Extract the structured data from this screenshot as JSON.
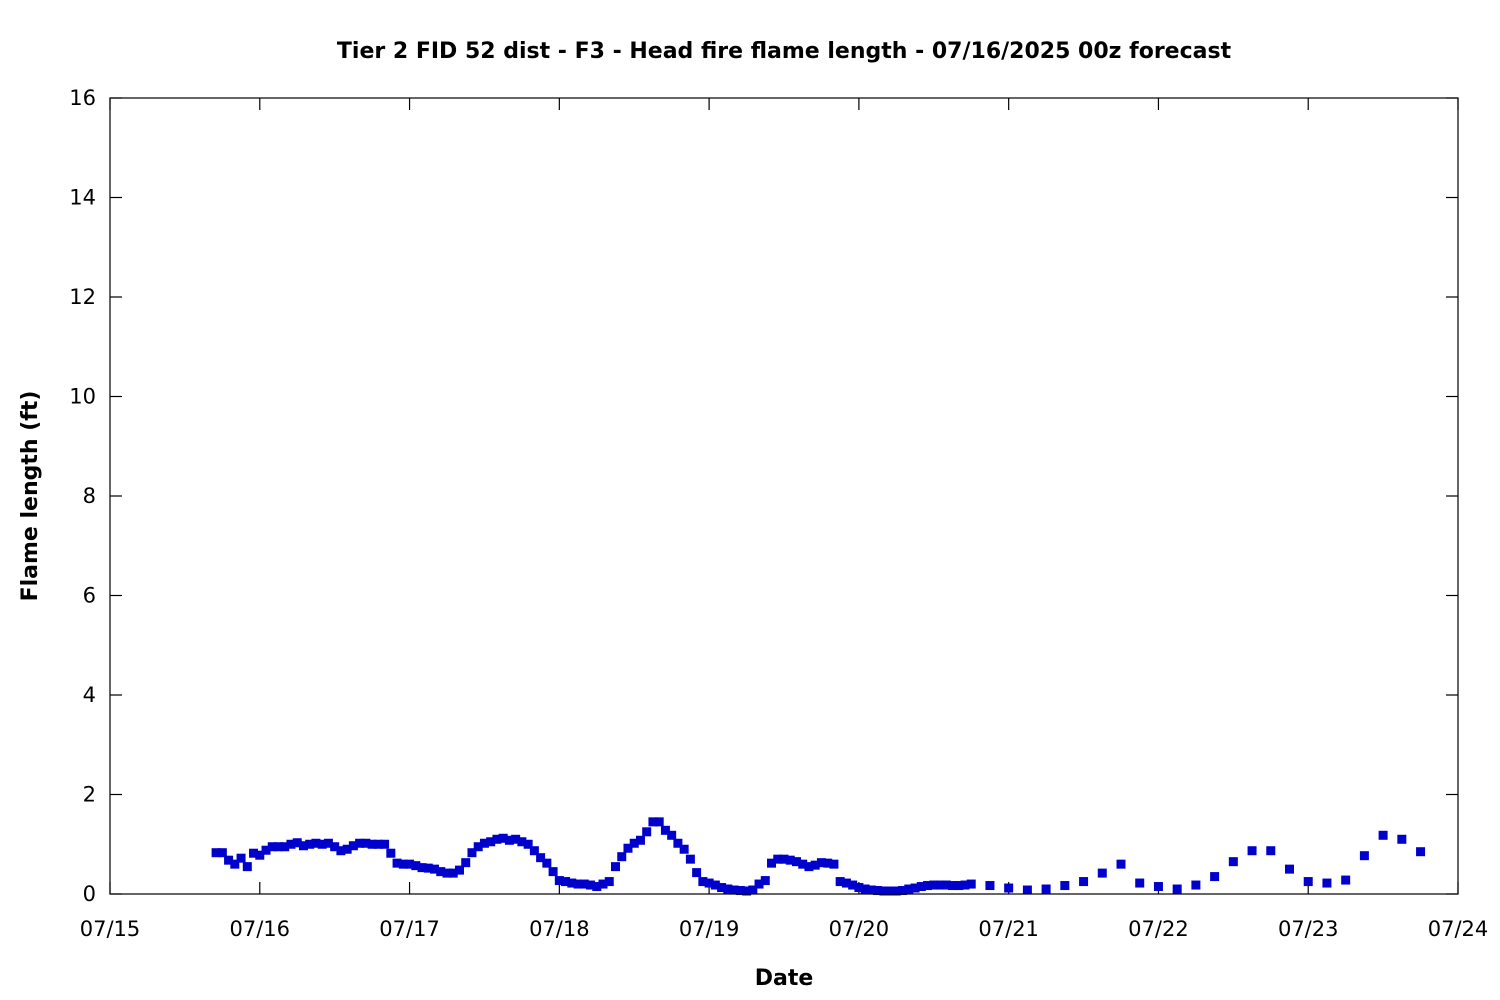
{
  "chart_data": {
    "type": "scatter",
    "title": "Tier 2 FID 52 dist - F3 - Head fire flame length - 07/16/2025 00z forecast",
    "xlabel": "Date",
    "ylabel": "Flame length (ft)",
    "x_axis": {
      "type": "date",
      "start": "2025-07-15",
      "end": "2025-07-24",
      "tick_labels": [
        "07/15",
        "07/16",
        "07/17",
        "07/18",
        "07/19",
        "07/20",
        "07/21",
        "07/22",
        "07/23",
        "07/24"
      ]
    },
    "ylim": [
      0,
      16
    ],
    "y_ticks": [
      0,
      2,
      4,
      6,
      8,
      10,
      12,
      14,
      16
    ],
    "grid": false,
    "marker": "square",
    "series": [
      {
        "color": "#0000cc",
        "points": [
          [
            "2025-07-15T17:00",
            0.83
          ],
          [
            "2025-07-15T18:00",
            0.83
          ],
          [
            "2025-07-15T19:00",
            0.68
          ],
          [
            "2025-07-15T20:00",
            0.6
          ],
          [
            "2025-07-15T21:00",
            0.72
          ],
          [
            "2025-07-15T22:00",
            0.55
          ],
          [
            "2025-07-15T23:00",
            0.82
          ],
          [
            "2025-07-16T00:00",
            0.78
          ],
          [
            "2025-07-16T01:00",
            0.88
          ],
          [
            "2025-07-16T02:00",
            0.95
          ],
          [
            "2025-07-16T03:00",
            0.95
          ],
          [
            "2025-07-16T04:00",
            0.95
          ],
          [
            "2025-07-16T05:00",
            1.0
          ],
          [
            "2025-07-16T06:00",
            1.03
          ],
          [
            "2025-07-16T07:00",
            0.97
          ],
          [
            "2025-07-16T08:00",
            1.0
          ],
          [
            "2025-07-16T09:00",
            1.02
          ],
          [
            "2025-07-16T10:00",
            1.0
          ],
          [
            "2025-07-16T11:00",
            1.02
          ],
          [
            "2025-07-16T12:00",
            0.95
          ],
          [
            "2025-07-16T13:00",
            0.87
          ],
          [
            "2025-07-16T14:00",
            0.9
          ],
          [
            "2025-07-16T15:00",
            0.97
          ],
          [
            "2025-07-16T16:00",
            1.02
          ],
          [
            "2025-07-16T17:00",
            1.02
          ],
          [
            "2025-07-16T18:00",
            1.0
          ],
          [
            "2025-07-16T19:00",
            1.0
          ],
          [
            "2025-07-16T20:00",
            1.0
          ],
          [
            "2025-07-16T21:00",
            0.82
          ],
          [
            "2025-07-16T22:00",
            0.62
          ],
          [
            "2025-07-16T23:00",
            0.6
          ],
          [
            "2025-07-17T00:00",
            0.6
          ],
          [
            "2025-07-17T01:00",
            0.57
          ],
          [
            "2025-07-17T02:00",
            0.53
          ],
          [
            "2025-07-17T03:00",
            0.52
          ],
          [
            "2025-07-17T04:00",
            0.5
          ],
          [
            "2025-07-17T05:00",
            0.45
          ],
          [
            "2025-07-17T06:00",
            0.42
          ],
          [
            "2025-07-17T07:00",
            0.42
          ],
          [
            "2025-07-17T08:00",
            0.48
          ],
          [
            "2025-07-17T09:00",
            0.63
          ],
          [
            "2025-07-17T10:00",
            0.83
          ],
          [
            "2025-07-17T11:00",
            0.95
          ],
          [
            "2025-07-17T12:00",
            1.02
          ],
          [
            "2025-07-17T13:00",
            1.05
          ],
          [
            "2025-07-17T14:00",
            1.1
          ],
          [
            "2025-07-17T15:00",
            1.12
          ],
          [
            "2025-07-17T16:00",
            1.08
          ],
          [
            "2025-07-17T17:00",
            1.1
          ],
          [
            "2025-07-17T18:00",
            1.05
          ],
          [
            "2025-07-17T19:00",
            1.0
          ],
          [
            "2025-07-17T20:00",
            0.87
          ],
          [
            "2025-07-17T21:00",
            0.73
          ],
          [
            "2025-07-17T22:00",
            0.62
          ],
          [
            "2025-07-17T23:00",
            0.45
          ],
          [
            "2025-07-18T00:00",
            0.27
          ],
          [
            "2025-07-18T01:00",
            0.25
          ],
          [
            "2025-07-18T02:00",
            0.22
          ],
          [
            "2025-07-18T03:00",
            0.2
          ],
          [
            "2025-07-18T04:00",
            0.2
          ],
          [
            "2025-07-18T05:00",
            0.18
          ],
          [
            "2025-07-18T06:00",
            0.15
          ],
          [
            "2025-07-18T07:00",
            0.2
          ],
          [
            "2025-07-18T08:00",
            0.25
          ],
          [
            "2025-07-18T09:00",
            0.55
          ],
          [
            "2025-07-18T10:00",
            0.75
          ],
          [
            "2025-07-18T11:00",
            0.92
          ],
          [
            "2025-07-18T12:00",
            1.02
          ],
          [
            "2025-07-18T13:00",
            1.08
          ],
          [
            "2025-07-18T14:00",
            1.25
          ],
          [
            "2025-07-18T15:00",
            1.45
          ],
          [
            "2025-07-18T16:00",
            1.45
          ],
          [
            "2025-07-18T17:00",
            1.28
          ],
          [
            "2025-07-18T18:00",
            1.18
          ],
          [
            "2025-07-18T19:00",
            1.02
          ],
          [
            "2025-07-18T20:00",
            0.9
          ],
          [
            "2025-07-18T21:00",
            0.7
          ],
          [
            "2025-07-18T22:00",
            0.43
          ],
          [
            "2025-07-18T23:00",
            0.25
          ],
          [
            "2025-07-19T00:00",
            0.22
          ],
          [
            "2025-07-19T01:00",
            0.18
          ],
          [
            "2025-07-19T02:00",
            0.13
          ],
          [
            "2025-07-19T03:00",
            0.1
          ],
          [
            "2025-07-19T04:00",
            0.08
          ],
          [
            "2025-07-19T05:00",
            0.07
          ],
          [
            "2025-07-19T06:00",
            0.06
          ],
          [
            "2025-07-19T07:00",
            0.08
          ],
          [
            "2025-07-19T08:00",
            0.2
          ],
          [
            "2025-07-19T09:00",
            0.27
          ],
          [
            "2025-07-19T10:00",
            0.62
          ],
          [
            "2025-07-19T11:00",
            0.7
          ],
          [
            "2025-07-19T12:00",
            0.7
          ],
          [
            "2025-07-19T13:00",
            0.68
          ],
          [
            "2025-07-19T14:00",
            0.65
          ],
          [
            "2025-07-19T15:00",
            0.6
          ],
          [
            "2025-07-19T16:00",
            0.55
          ],
          [
            "2025-07-19T17:00",
            0.58
          ],
          [
            "2025-07-19T18:00",
            0.63
          ],
          [
            "2025-07-19T19:00",
            0.62
          ],
          [
            "2025-07-19T20:00",
            0.6
          ],
          [
            "2025-07-19T21:00",
            0.25
          ],
          [
            "2025-07-19T22:00",
            0.22
          ],
          [
            "2025-07-19T23:00",
            0.18
          ],
          [
            "2025-07-20T00:00",
            0.13
          ],
          [
            "2025-07-20T01:00",
            0.1
          ],
          [
            "2025-07-20T02:00",
            0.08
          ],
          [
            "2025-07-20T03:00",
            0.07
          ],
          [
            "2025-07-20T04:00",
            0.06
          ],
          [
            "2025-07-20T05:00",
            0.06
          ],
          [
            "2025-07-20T06:00",
            0.06
          ],
          [
            "2025-07-20T07:00",
            0.07
          ],
          [
            "2025-07-20T08:00",
            0.1
          ],
          [
            "2025-07-20T09:00",
            0.12
          ],
          [
            "2025-07-20T10:00",
            0.15
          ],
          [
            "2025-07-20T11:00",
            0.17
          ],
          [
            "2025-07-20T12:00",
            0.18
          ],
          [
            "2025-07-20T13:00",
            0.18
          ],
          [
            "2025-07-20T14:00",
            0.18
          ],
          [
            "2025-07-20T15:00",
            0.17
          ],
          [
            "2025-07-20T16:00",
            0.17
          ],
          [
            "2025-07-20T17:00",
            0.18
          ],
          [
            "2025-07-20T18:00",
            0.2
          ],
          [
            "2025-07-20T21:00",
            0.17
          ],
          [
            "2025-07-21T00:00",
            0.12
          ],
          [
            "2025-07-21T03:00",
            0.08
          ],
          [
            "2025-07-21T06:00",
            0.1
          ],
          [
            "2025-07-21T09:00",
            0.17
          ],
          [
            "2025-07-21T12:00",
            0.25
          ],
          [
            "2025-07-21T15:00",
            0.42
          ],
          [
            "2025-07-21T18:00",
            0.6
          ],
          [
            "2025-07-21T21:00",
            0.22
          ],
          [
            "2025-07-22T00:00",
            0.15
          ],
          [
            "2025-07-22T03:00",
            0.1
          ],
          [
            "2025-07-22T06:00",
            0.18
          ],
          [
            "2025-07-22T09:00",
            0.35
          ],
          [
            "2025-07-22T12:00",
            0.65
          ],
          [
            "2025-07-22T15:00",
            0.87
          ],
          [
            "2025-07-22T18:00",
            0.87
          ],
          [
            "2025-07-22T21:00",
            0.5
          ],
          [
            "2025-07-23T00:00",
            0.25
          ],
          [
            "2025-07-23T03:00",
            0.22
          ],
          [
            "2025-07-23T06:00",
            0.28
          ],
          [
            "2025-07-23T09:00",
            0.77
          ],
          [
            "2025-07-23T12:00",
            1.18
          ],
          [
            "2025-07-23T15:00",
            1.1
          ],
          [
            "2025-07-23T18:00",
            0.85
          ]
        ]
      }
    ]
  }
}
